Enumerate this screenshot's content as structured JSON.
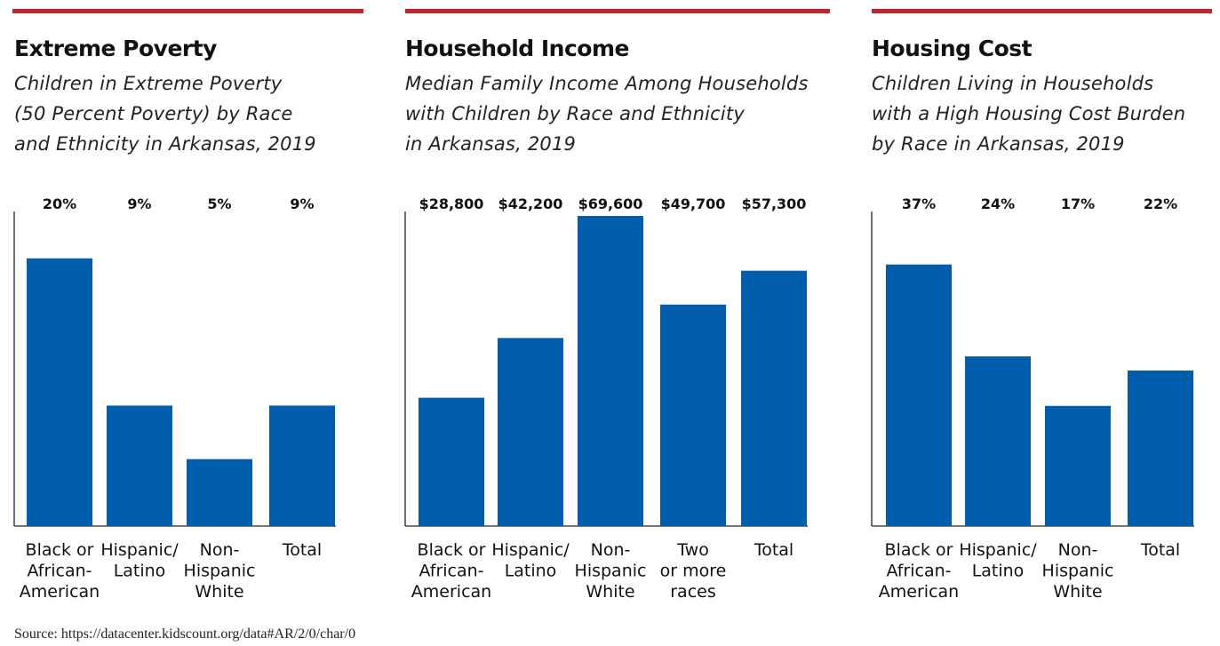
{
  "colors": {
    "accent_red": "#c0272d",
    "bar_blue": "#005eac"
  },
  "source": "Source: https://datacenter.kidscount.org/data#AR/2/0/char/0",
  "chart_data": [
    {
      "type": "bar",
      "title": "Extreme Poverty",
      "subtitle": "Children in Extreme Poverty\n(50 Percent Poverty) by Race\nand Ethnicity in Arkansas, 2019",
      "categories": [
        [
          "Black or",
          "African-",
          "American"
        ],
        [
          "Hispanic/",
          "Latino"
        ],
        [
          "Non-",
          "Hispanic",
          "White"
        ],
        [
          "Total"
        ]
      ],
      "values": [
        20,
        9,
        5,
        9
      ],
      "value_labels": [
        "20%",
        "9%",
        "5%",
        "9%"
      ],
      "ylim": [
        0,
        23.5
      ]
    },
    {
      "type": "bar",
      "title": "Household Income",
      "subtitle": "Median Family Income Among Households\nwith Children by Race and Ethnicity\nin Arkansas, 2019",
      "categories": [
        [
          "Black or",
          "African-",
          "American"
        ],
        [
          "Hispanic/",
          "Latino"
        ],
        [
          "Non-",
          "Hispanic",
          "White"
        ],
        [
          "Two",
          "or more",
          "races"
        ],
        [
          "Total"
        ]
      ],
      "values": [
        28800,
        42200,
        69600,
        49700,
        57300
      ],
      "value_labels": [
        "$28,800",
        "$42,200",
        "$69,600",
        "$49,700",
        "$57,300"
      ],
      "ylim": [
        0,
        70600
      ]
    },
    {
      "type": "bar",
      "title": "Housing Cost",
      "subtitle": "Children Living in Households\nwith a High Housing Cost Burden\nby Race in Arkansas, 2019",
      "categories": [
        [
          "Black or",
          "African-",
          "American"
        ],
        [
          "Hispanic/",
          "Latino"
        ],
        [
          "Non-",
          "Hispanic",
          "White"
        ],
        [
          "Total"
        ]
      ],
      "values": [
        37,
        24,
        17,
        22
      ],
      "value_labels": [
        "37%",
        "24%",
        "17%",
        "22%"
      ],
      "ylim": [
        0,
        44.5
      ]
    }
  ]
}
